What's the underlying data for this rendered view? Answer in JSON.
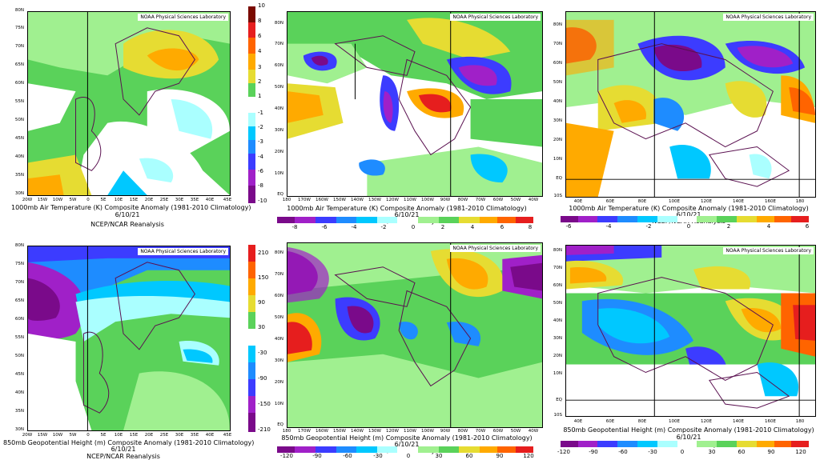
{
  "credit": "NOAA Physical Sciences Laboratory",
  "date": "6/10/21",
  "reanalysis": "NCEP/NCAR Reanalysis",
  "titles": {
    "air": "1000mb Air Temperature (K) Composite Anomaly (1981-2010 Climatology)",
    "hgt": "850mb Geopotential Height (m) Composite Anomaly (1981-2010 Climatology)"
  },
  "axes": {
    "europe_lat": [
      "80N",
      "75N",
      "70N",
      "65N",
      "60N",
      "55N",
      "50N",
      "45N",
      "40N",
      "35N",
      "30N"
    ],
    "europe_lon": [
      "20W",
      "15W",
      "10W",
      "5W",
      "0",
      "5E",
      "10E",
      "15E",
      "20E",
      "25E",
      "30E",
      "35E",
      "40E",
      "45E"
    ],
    "na_lat": [
      "80N",
      "70N",
      "60N",
      "50N",
      "40N",
      "30N",
      "20N",
      "10N",
      "EQ"
    ],
    "na_lon": [
      "180",
      "170W",
      "160W",
      "150W",
      "140W",
      "130W",
      "120W",
      "110W",
      "100W",
      "90W",
      "80W",
      "70W",
      "60W",
      "50W",
      "40W"
    ],
    "asia_lat": [
      "80N",
      "70N",
      "60N",
      "50N",
      "40N",
      "30N",
      "20N",
      "10N",
      "EQ",
      "10S"
    ],
    "asia_lon": [
      "40E",
      "60E",
      "80E",
      "100E",
      "120E",
      "140E",
      "160E",
      "180"
    ]
  },
  "scales": {
    "air_vertical": [
      "10",
      "8",
      "6",
      "4",
      "3",
      "2",
      "1",
      "-1",
      "-2",
      "-3",
      "-4",
      "-6",
      "-8",
      "-10"
    ],
    "air_horizontal": [
      "-8",
      "-6",
      "-4",
      "-2",
      "0",
      "2",
      "4",
      "6",
      "8"
    ],
    "hgt_vertical": [
      "210",
      "150",
      "90",
      "30",
      "-30",
      "-90",
      "-150",
      "-210"
    ],
    "hgt_horizontal": [
      "-120",
      "-90",
      "-60",
      "-30",
      "0",
      "30",
      "60",
      "90",
      "120"
    ]
  },
  "colors": {
    "scale": [
      "#7a0a8a",
      "#a020c8",
      "#3c3cff",
      "#1e8cff",
      "#00c8ff",
      "#aaffff",
      "#ffffff",
      "#ffffff",
      "#a0f090",
      "#5ad25a",
      "#e6dc32",
      "#ffaa00",
      "#ff6400",
      "#e61e1e"
    ],
    "accent_land": "#5a1050"
  }
}
